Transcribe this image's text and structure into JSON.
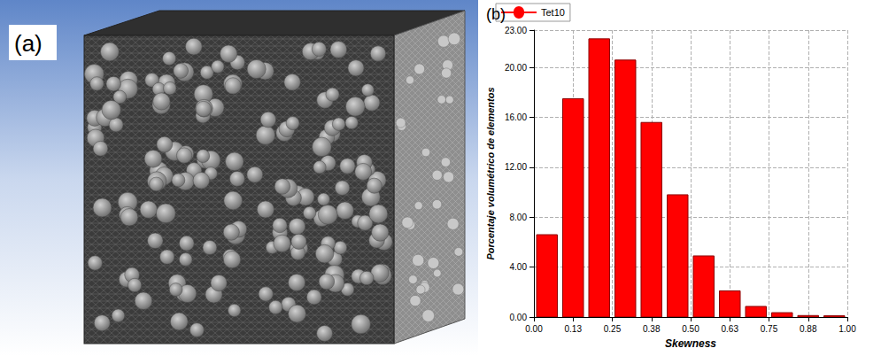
{
  "mesh_panel": {
    "label": "(a)"
  },
  "chart_data": {
    "type": "histogram",
    "panel_label": "(b)",
    "x_label": "Skewness",
    "y_label": "Porcentaje volumétrico de elementos",
    "bins": [
      0,
      0.0833,
      0.1667,
      0.25,
      0.3333,
      0.4167,
      0.5,
      0.5833,
      0.6667,
      0.75,
      0.8333,
      0.9167,
      1
    ],
    "series": [
      {
        "name": "Tet10",
        "color": "#ff0000",
        "values": [
          6.6,
          17.5,
          22.3,
          20.6,
          15.6,
          9.8,
          4.9,
          2.1,
          0.85,
          0.35,
          0.12,
          0.1
        ]
      }
    ],
    "xlim": [
      0,
      1
    ],
    "xticks": [
      {
        "value": 0,
        "label": "0.00"
      },
      {
        "value": 0.125,
        "label": "0.13"
      },
      {
        "value": 0.25,
        "label": "0.25"
      },
      {
        "value": 0.375,
        "label": "0.38"
      },
      {
        "value": 0.5,
        "label": "0.50"
      },
      {
        "value": 0.625,
        "label": "0.63"
      },
      {
        "value": 0.75,
        "label": "0.75"
      },
      {
        "value": 0.875,
        "label": "0.88"
      },
      {
        "value": 1,
        "label": "1.00"
      }
    ],
    "ylim": [
      0,
      23
    ],
    "yticks": [
      {
        "value": 0,
        "label": "0.00"
      },
      {
        "value": 4,
        "label": "4.00"
      },
      {
        "value": 8,
        "label": "8.00"
      },
      {
        "value": 12,
        "label": "12.00"
      },
      {
        "value": 16,
        "label": "16.00"
      },
      {
        "value": 20,
        "label": "20.00"
      },
      {
        "value": 23,
        "label": "23.00"
      }
    ],
    "grid": true,
    "legend": "top-left"
  }
}
